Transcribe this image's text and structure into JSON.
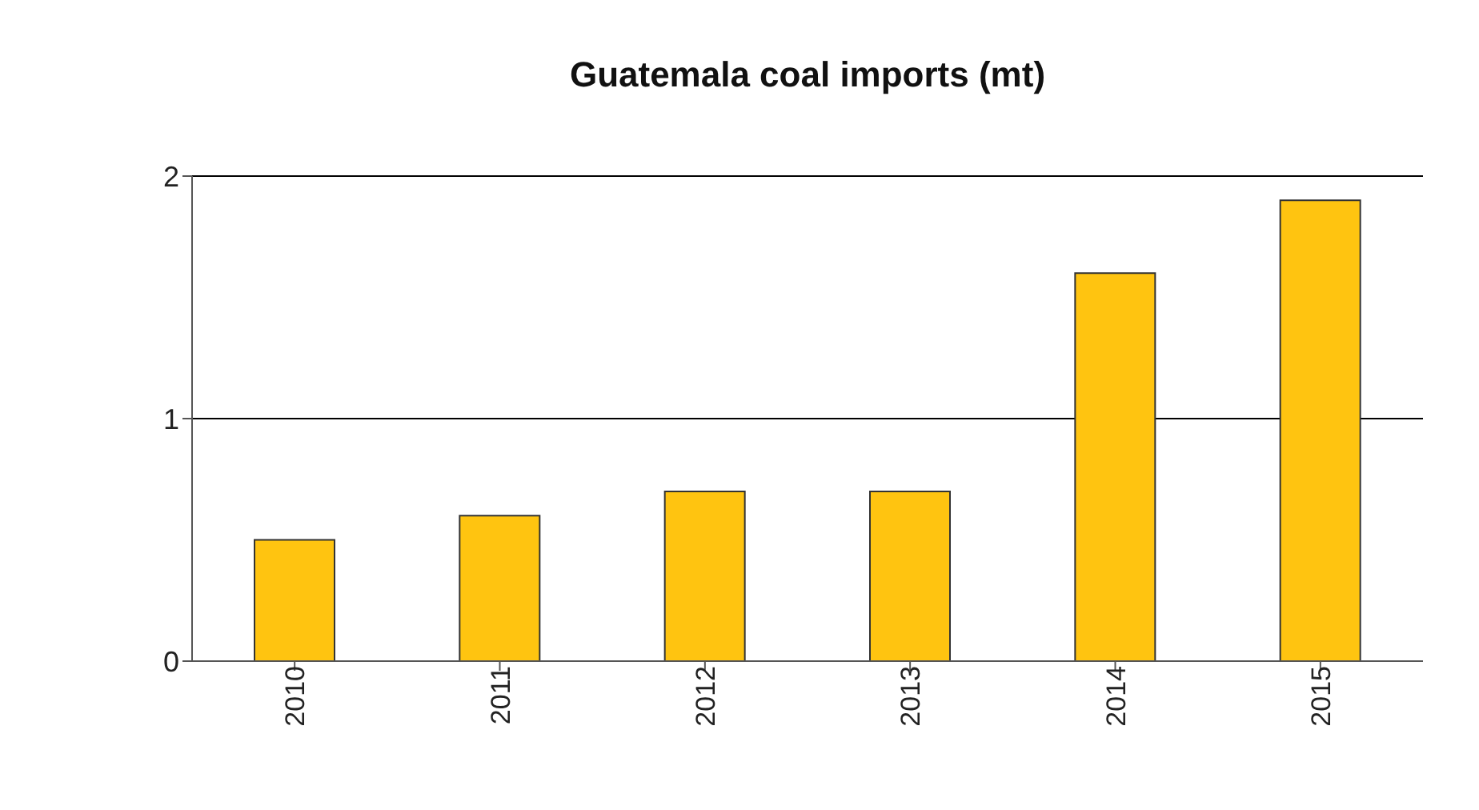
{
  "chart_data": {
    "type": "bar",
    "title": "Guatemala coal imports (mt)",
    "categories": [
      "2010",
      "2011",
      "2012",
      "2013",
      "2014",
      "2015"
    ],
    "values": [
      0.5,
      0.6,
      0.7,
      0.7,
      1.6,
      1.9
    ],
    "color": "#ffc410",
    "ylim": [
      0,
      2
    ],
    "yticks": [
      0,
      1,
      2
    ],
    "grid": "y"
  }
}
